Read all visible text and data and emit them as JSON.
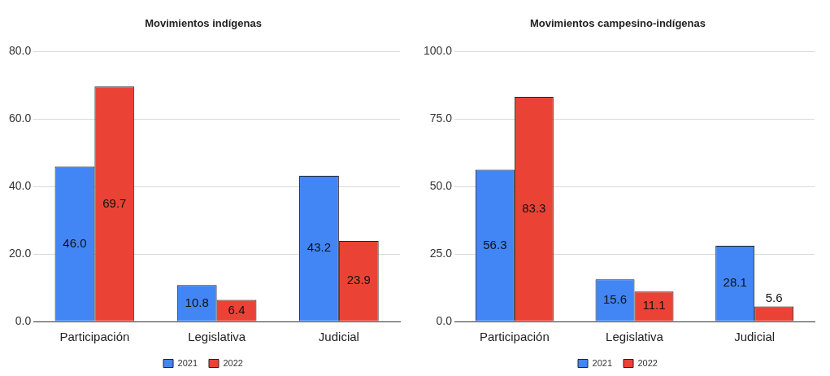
{
  "chart_data": [
    {
      "type": "bar",
      "title": "Movimientos indígenas",
      "categories": [
        "Participación",
        "Legislativa",
        "Judicial"
      ],
      "series": [
        {
          "name": "2021",
          "color": "#4285f4",
          "values": [
            46.0,
            10.8,
            43.2
          ],
          "value_labels": [
            "46.0",
            "10.8",
            "43.2"
          ]
        },
        {
          "name": "2022",
          "color": "#ea4335",
          "values": [
            69.7,
            6.4,
            23.9
          ],
          "value_labels": [
            "69.7",
            "6.4",
            "23.9"
          ]
        }
      ],
      "ylim": [
        0,
        80
      ],
      "yticks": [
        {
          "value": 0,
          "label": "0.0"
        },
        {
          "value": 20,
          "label": "20.0"
        },
        {
          "value": 40,
          "label": "40.0"
        },
        {
          "value": 60,
          "label": "60.0"
        },
        {
          "value": 80,
          "label": "80.0"
        }
      ],
      "grid": "y",
      "legend": "bottom"
    },
    {
      "type": "bar",
      "title": "Movimientos campesino-indígenas",
      "categories": [
        "Participación",
        "Legislativa",
        "Judicial"
      ],
      "series": [
        {
          "name": "2021",
          "color": "#4285f4",
          "values": [
            56.3,
            15.6,
            28.1
          ],
          "value_labels": [
            "56.3",
            "15.6",
            "28.1"
          ]
        },
        {
          "name": "2022",
          "color": "#ea4335",
          "values": [
            83.3,
            11.1,
            5.6
          ],
          "value_labels": [
            "83.3",
            "11.1",
            "5.6"
          ]
        }
      ],
      "ylim": [
        0,
        100
      ],
      "yticks": [
        {
          "value": 0,
          "label": "0.0"
        },
        {
          "value": 25,
          "label": "25.0"
        },
        {
          "value": 50,
          "label": "50.0"
        },
        {
          "value": 75,
          "label": "75.0"
        },
        {
          "value": 100,
          "label": "100.0"
        }
      ],
      "grid": "y",
      "legend": "bottom"
    }
  ]
}
